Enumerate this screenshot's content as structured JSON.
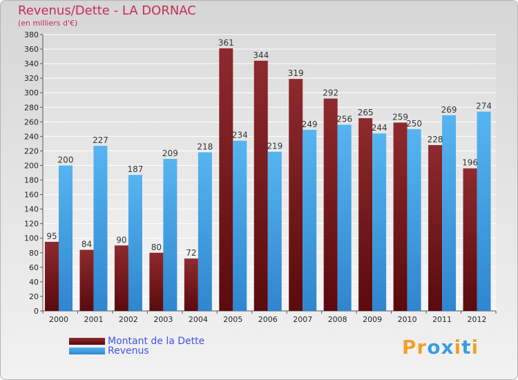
{
  "title": "Revenus/Dette - LA DORNAC",
  "subtitle": "(en milliers d'€)",
  "colors": {
    "dette": "#7a1a1e",
    "revenus": "#3a9de0",
    "text": "#c72b52",
    "legend_text": "#3f51f0"
  },
  "logo": {
    "text": "Proxiti",
    "colors": [
      "#f3a02a",
      "#f3a02a",
      "#3a9de0",
      "#3a9de0",
      "#f3a02a",
      "#3a9de0",
      "#f3a02a"
    ]
  },
  "chart_data": {
    "type": "bar",
    "categories": [
      "2000",
      "2001",
      "2002",
      "2003",
      "2004",
      "2005",
      "2006",
      "2007",
      "2008",
      "2009",
      "2010",
      "2011",
      "2012"
    ],
    "series": [
      {
        "name": "Montant de la Dette",
        "values": [
          95,
          84,
          90,
          80,
          72,
          361,
          344,
          319,
          292,
          265,
          259,
          228,
          196
        ]
      },
      {
        "name": "Revenus",
        "values": [
          200,
          227,
          187,
          209,
          218,
          234,
          219,
          249,
          256,
          244,
          250,
          269,
          274
        ]
      }
    ],
    "ylim": [
      0,
      380
    ],
    "yticks": [
      0,
      20,
      40,
      60,
      80,
      100,
      120,
      140,
      160,
      180,
      200,
      220,
      240,
      260,
      280,
      300,
      320,
      340,
      360,
      380
    ],
    "grid": true,
    "legend_position": "bottom-left"
  }
}
